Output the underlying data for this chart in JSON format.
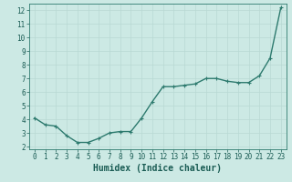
{
  "x": [
    0,
    1,
    2,
    3,
    4,
    5,
    6,
    7,
    8,
    9,
    10,
    11,
    12,
    13,
    14,
    15,
    16,
    17,
    18,
    19,
    20,
    21,
    22,
    23
  ],
  "y": [
    4.1,
    3.6,
    3.5,
    2.8,
    2.3,
    2.3,
    2.6,
    3.0,
    3.1,
    3.1,
    4.1,
    5.3,
    6.4,
    6.4,
    6.5,
    6.6,
    7.0,
    7.0,
    6.8,
    6.7,
    6.7,
    7.2,
    8.5,
    12.2
  ],
  "line_color": "#2d7a6e",
  "marker": "+",
  "marker_size": 3,
  "bg_color": "#cce9e4",
  "grid_color": "#b8d9d3",
  "axis_color": "#2d7a6e",
  "tick_color": "#1a5c54",
  "xlabel": "Humidex (Indice chaleur)",
  "xlabel_fontsize": 7,
  "xlim": [
    -0.5,
    23.5
  ],
  "ylim": [
    1.8,
    12.5
  ],
  "yticks": [
    2,
    3,
    4,
    5,
    6,
    7,
    8,
    9,
    10,
    11,
    12
  ],
  "xticks": [
    0,
    1,
    2,
    3,
    4,
    5,
    6,
    7,
    8,
    9,
    10,
    11,
    12,
    13,
    14,
    15,
    16,
    17,
    18,
    19,
    20,
    21,
    22,
    23
  ],
  "tick_fontsize": 5.5,
  "line_width": 1.0
}
